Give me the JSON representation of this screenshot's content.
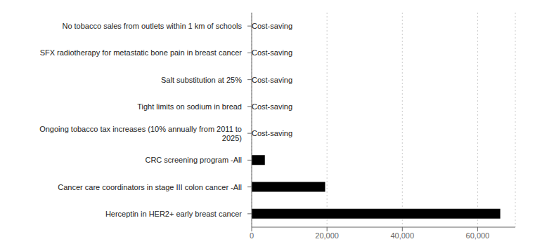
{
  "chart_data": {
    "type": "bar",
    "orientation": "horizontal",
    "categories": [
      "No tobacco sales from outlets within 1 km of schools",
      "SFX radiotherapy for metastatic bone pain in breast cancer",
      "Salt substitution at 25%",
      "Tight limits on sodium in bread",
      "Ongoing tobacco tax increases (10% annually from 2011 to\n2025)",
      "CRC screening program -All",
      "Cancer care coordinators in stage III colon cancer -All",
      "Herceptin in HER2+ early breast cancer"
    ],
    "values": [
      null,
      null,
      null,
      null,
      null,
      3500,
      19500,
      66000
    ],
    "color": "#000000",
    "xlim": [
      0,
      70000
    ],
    "xticks": [
      0,
      {
        "value": 20000,
        "label": "20,000"
      },
      {
        "value": 40000,
        "label": "40,000"
      },
      {
        "value": 60000,
        "label": "60,000"
      }
    ],
    "grid": true,
    "annotations": [
      {
        "category": "No tobacco sales from outlets within 1 km of schools",
        "text": "Cost-saving"
      },
      {
        "category": "SFX radiotherapy for metastatic bone pain in breast cancer",
        "text": "Cost-saving"
      },
      {
        "category": "Salt substitution at 25%",
        "text": "Cost-saving"
      },
      {
        "category": "Tight limits on sodium in bread",
        "text": "Cost-saving"
      },
      {
        "category": "Ongoing tobacco tax increases (10% annually from 2011 to\n2025)",
        "text": "Cost-saving"
      }
    ]
  }
}
